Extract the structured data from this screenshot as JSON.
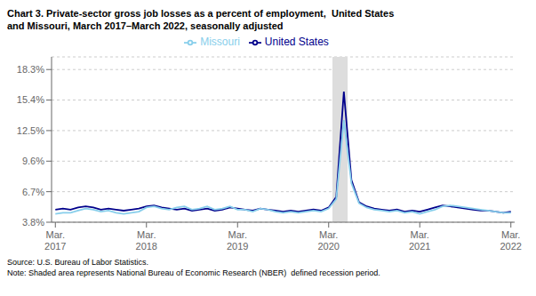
{
  "chart_data": {
    "type": "line",
    "title": "Chart 3. Private-sector gross job losses as a percent of employment,  United States",
    "subtitle": "and Missouri, March 2017–March 2022, seasonally adjusted",
    "source_note": "Source: U.S. Bureau of Labor Statistics.\nNote: Shaded area represents National Bureau of Economic Research (NBER)  defined recession period.",
    "categories": [
      "Mar.\n2017",
      null,
      null,
      null,
      null,
      null,
      null,
      null,
      null,
      null,
      null,
      null,
      "Mar.\n2018",
      null,
      null,
      null,
      null,
      null,
      null,
      null,
      null,
      null,
      null,
      null,
      "Mar.\n2019",
      null,
      null,
      null,
      null,
      null,
      null,
      null,
      null,
      null,
      null,
      null,
      "Mar.\n2020",
      null,
      null,
      null,
      null,
      null,
      null,
      null,
      null,
      null,
      null,
      null,
      "Mar.\n2021",
      null,
      null,
      null,
      null,
      null,
      null,
      null,
      null,
      null,
      null,
      null,
      "Mar.\n2022"
    ],
    "series": [
      {
        "name": "United States",
        "color": "#00008B",
        "values": [
          5.0,
          5.1,
          5.0,
          5.2,
          5.3,
          5.2,
          5.0,
          5.1,
          5.0,
          4.9,
          5.0,
          5.1,
          5.3,
          5.4,
          5.2,
          5.1,
          5.0,
          5.1,
          4.9,
          5.0,
          5.1,
          4.9,
          5.0,
          5.2,
          5.1,
          5.0,
          4.9,
          5.1,
          5.0,
          4.9,
          4.8,
          4.9,
          4.8,
          4.9,
          5.0,
          4.9,
          5.2,
          6.2,
          16.2,
          7.8,
          5.7,
          5.3,
          5.1,
          5.0,
          4.9,
          5.0,
          4.8,
          4.9,
          4.8,
          5.0,
          5.2,
          5.4,
          5.3,
          5.2,
          5.1,
          5.0,
          4.9,
          4.9,
          4.8,
          4.7,
          4.8
        ]
      },
      {
        "name": "Missouri",
        "color": "#87CEEB",
        "values": [
          4.6,
          4.7,
          4.7,
          4.9,
          5.1,
          5.0,
          4.8,
          4.9,
          4.7,
          4.6,
          4.7,
          4.8,
          5.2,
          5.3,
          5.1,
          5.0,
          5.2,
          5.3,
          5.0,
          5.1,
          5.3,
          5.0,
          5.1,
          5.3,
          5.0,
          5.0,
          4.8,
          5.1,
          5.0,
          4.8,
          4.7,
          4.8,
          4.7,
          4.8,
          4.9,
          4.8,
          5.1,
          6.0,
          13.5,
          7.5,
          5.6,
          5.2,
          5.0,
          4.9,
          4.8,
          4.9,
          4.7,
          4.8,
          4.6,
          4.8,
          5.0,
          5.3,
          5.4,
          5.3,
          5.2,
          5.1,
          5.0,
          4.9,
          4.8,
          4.7,
          4.7
        ]
      }
    ],
    "recession": {
      "start": 36.5,
      "end": 38.5,
      "color": "#DDDDDD"
    },
    "ylim": [
      3.8,
      19.5
    ],
    "yticks": [
      {
        "value": 3.8,
        "label": "3.8%"
      },
      {
        "value": 6.7,
        "label": "6.7%"
      },
      {
        "value": 9.6,
        "label": "9.6%"
      },
      {
        "value": 12.5,
        "label": "12.5%"
      },
      {
        "value": 15.4,
        "label": "15.4%"
      },
      {
        "value": 18.3,
        "label": "18.3%"
      }
    ],
    "grid": true,
    "legend": "top"
  }
}
